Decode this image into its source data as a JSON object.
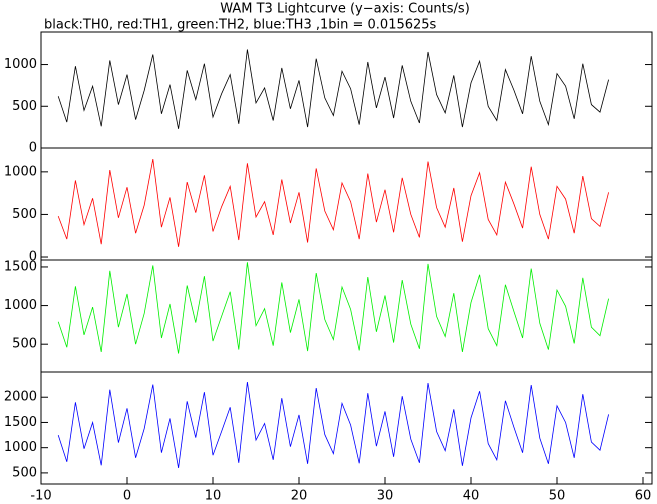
{
  "chart_data": [
    {
      "type": "line",
      "title": "WAM T3 Lightcurve (y−axis: Counts/s)",
      "subtitle": "black:TH0, red:TH1, green:TH2, blue:TH3 ,1bin = 0.015625s",
      "xlim": [
        -10,
        60
      ],
      "ylim": [
        0,
        1390
      ],
      "yticks": [
        0,
        500,
        1000
      ],
      "x": [
        -8,
        -7,
        -6,
        -5,
        -4,
        -3,
        -2,
        -1,
        0,
        1,
        2,
        3,
        4,
        5,
        6,
        7,
        8,
        9,
        10,
        11,
        12,
        13,
        14,
        15,
        16,
        17,
        18,
        19,
        20,
        21,
        22,
        23,
        24,
        25,
        26,
        27,
        28,
        29,
        30,
        31,
        32,
        33,
        34,
        35,
        36,
        37,
        38,
        39,
        40,
        41,
        42,
        43,
        44,
        45,
        46,
        47,
        48,
        49,
        50,
        51,
        52,
        53,
        54,
        55,
        56
      ],
      "series": [
        {
          "color": "#000000",
          "values": [
            620,
            310,
            980,
            450,
            740,
            260,
            1050,
            520,
            880,
            340,
            690,
            1120,
            410,
            760,
            230,
            930,
            580,
            1010,
            370,
            650,
            880,
            290,
            1180,
            540,
            720,
            330,
            960,
            470,
            810,
            250,
            1070,
            600,
            390,
            920,
            710,
            280,
            1030,
            480,
            850,
            360,
            990,
            560,
            300,
            1150,
            640,
            420,
            870,
            250,
            780,
            1040,
            500,
            330,
            940,
            690,
            410,
            1100,
            560,
            280,
            890,
            740,
            350,
            1010,
            520,
            430,
            820
          ]
        }
      ]
    },
    {
      "type": "line",
      "xlim": [
        -10,
        60
      ],
      "ylim": [
        -35,
        1280
      ],
      "yticks": [
        0,
        500,
        1000
      ],
      "x": [
        -8,
        -7,
        -6,
        -5,
        -4,
        -3,
        -2,
        -1,
        0,
        1,
        2,
        3,
        4,
        5,
        6,
        7,
        8,
        9,
        10,
        11,
        12,
        13,
        14,
        15,
        16,
        17,
        18,
        19,
        20,
        21,
        22,
        23,
        24,
        25,
        26,
        27,
        28,
        29,
        30,
        31,
        32,
        33,
        34,
        35,
        36,
        37,
        38,
        39,
        40,
        41,
        42,
        43,
        44,
        45,
        46,
        47,
        48,
        49,
        50,
        51,
        52,
        53,
        54,
        55,
        56
      ],
      "series": [
        {
          "color": "#ff0000",
          "values": [
            480,
            210,
            900,
            380,
            690,
            150,
            1020,
            460,
            820,
            280,
            610,
            1150,
            350,
            700,
            120,
            880,
            520,
            960,
            300,
            590,
            830,
            200,
            1100,
            470,
            650,
            260,
            910,
            400,
            760,
            170,
            1040,
            540,
            320,
            870,
            650,
            210,
            980,
            410,
            790,
            290,
            930,
            500,
            230,
            1120,
            580,
            350,
            810,
            180,
            720,
            990,
            440,
            260,
            880,
            620,
            340,
            1060,
            500,
            210,
            830,
            680,
            280,
            950,
            450,
            360,
            760
          ]
        }
      ]
    },
    {
      "type": "line",
      "xlim": [
        -10,
        60
      ],
      "ylim": [
        140,
        1590
      ],
      "yticks": [
        500,
        1000,
        1500
      ],
      "x": [
        -8,
        -7,
        -6,
        -5,
        -4,
        -3,
        -2,
        -1,
        0,
        1,
        2,
        3,
        4,
        5,
        6,
        7,
        8,
        9,
        10,
        11,
        12,
        13,
        14,
        15,
        16,
        17,
        18,
        19,
        20,
        21,
        22,
        23,
        24,
        25,
        26,
        27,
        28,
        29,
        30,
        31,
        32,
        33,
        34,
        35,
        36,
        37,
        38,
        39,
        40,
        41,
        42,
        43,
        44,
        45,
        46,
        47,
        48,
        49,
        50,
        51,
        52,
        53,
        54,
        55,
        56
      ],
      "series": [
        {
          "color": "#00ee00",
          "values": [
            790,
            460,
            1250,
            620,
            980,
            400,
            1450,
            720,
            1150,
            500,
            900,
            1520,
            580,
            1020,
            380,
            1260,
            780,
            1380,
            540,
            860,
            1180,
            430,
            1560,
            740,
            960,
            480,
            1300,
            650,
            1080,
            410,
            1420,
            820,
            560,
            1240,
            950,
            420,
            1370,
            660,
            1130,
            520,
            1330,
            760,
            440,
            1540,
            860,
            600,
            1160,
            400,
            1040,
            1400,
            700,
            480,
            1270,
            920,
            580,
            1480,
            770,
            430,
            1200,
            990,
            510,
            1360,
            720,
            610,
            1090
          ]
        }
      ]
    },
    {
      "type": "line",
      "xlim": [
        -10,
        60
      ],
      "ylim": [
        280,
        2500
      ],
      "yticks": [
        500,
        1000,
        1500,
        2000
      ],
      "xticks": [
        -10,
        0,
        10,
        20,
        30,
        40,
        50,
        60
      ],
      "x": [
        -8,
        -7,
        -6,
        -5,
        -4,
        -3,
        -2,
        -1,
        0,
        1,
        2,
        3,
        4,
        5,
        6,
        7,
        8,
        9,
        10,
        11,
        12,
        13,
        14,
        15,
        16,
        17,
        18,
        19,
        20,
        21,
        22,
        23,
        24,
        25,
        26,
        27,
        28,
        29,
        30,
        31,
        32,
        33,
        34,
        35,
        36,
        37,
        38,
        39,
        40,
        41,
        42,
        43,
        44,
        45,
        46,
        47,
        48,
        49,
        50,
        51,
        52,
        53,
        54,
        55,
        56
      ],
      "series": [
        {
          "color": "#0000ff",
          "values": [
            1250,
            720,
            1900,
            980,
            1500,
            650,
            2150,
            1100,
            1780,
            800,
            1380,
            2250,
            900,
            1580,
            600,
            1920,
            1200,
            2100,
            850,
            1320,
            1800,
            700,
            2300,
            1150,
            1480,
            760,
            1980,
            1020,
            1650,
            680,
            2180,
            1260,
            880,
            1880,
            1450,
            690,
            2080,
            1030,
            1720,
            820,
            2020,
            1170,
            700,
            2280,
            1320,
            940,
            1760,
            640,
            1590,
            2120,
            1080,
            760,
            1930,
            1400,
            900,
            2240,
            1190,
            680,
            1830,
            1500,
            800,
            2060,
            1110,
            950,
            1660
          ]
        }
      ]
    }
  ]
}
